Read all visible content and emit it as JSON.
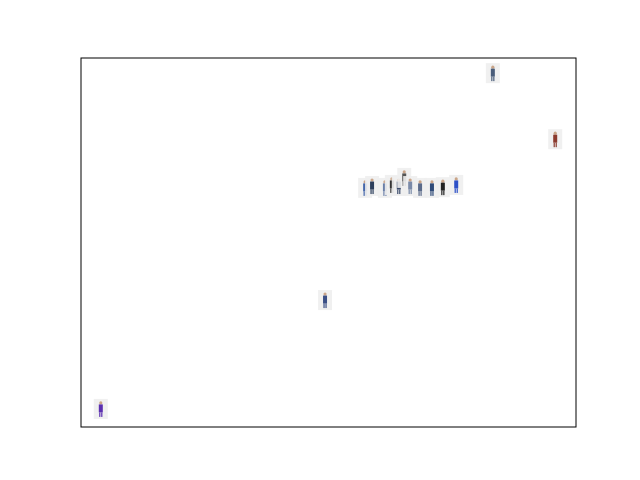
{
  "chart_data": {
    "type": "scatter",
    "marker": "thumbnail",
    "tick_labels": false,
    "grid": false,
    "xlim": [
      0,
      1
    ],
    "ylim": [
      0,
      1
    ],
    "xticks": [],
    "yticks": [],
    "x": [
      0.832,
      0.958,
      0.574,
      0.588,
      0.614,
      0.628,
      0.642,
      0.653,
      0.665,
      0.685,
      0.709,
      0.731,
      0.758,
      0.493,
      0.04
    ],
    "values": [
      0.959,
      0.78,
      0.648,
      0.653,
      0.648,
      0.656,
      0.653,
      0.675,
      0.653,
      0.648,
      0.648,
      0.65,
      0.656,
      0.344,
      0.049
    ],
    "colors": [
      "#4a5d7a",
      "#8b3a2e",
      "#4466aa",
      "#2c3e5c",
      "#6a7fa8",
      "#333333",
      "#3c4c6c",
      "#555555",
      "#7a8aa8",
      "#5a6a8a",
      "#2e4a78",
      "#222222",
      "#2d50c8",
      "#3a4f86",
      "#5b2fb0"
    ]
  }
}
